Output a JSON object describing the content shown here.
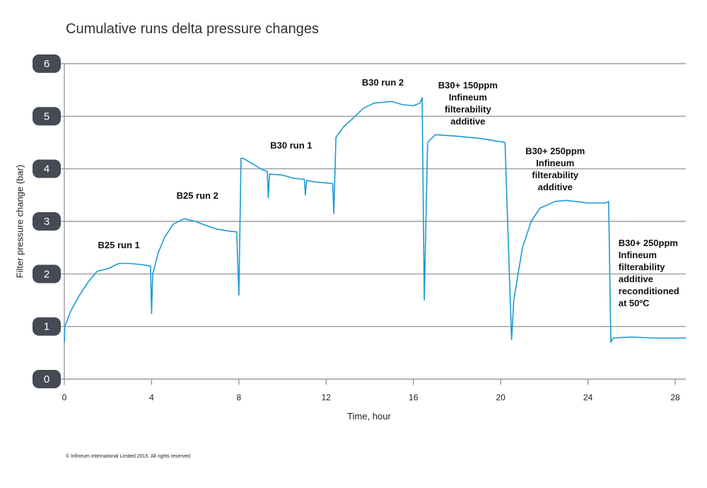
{
  "chart_data": {
    "type": "line",
    "title": "Cumulative runs delta pressure changes",
    "xlabel": "Time, hour",
    "ylabel": "Filter pressure change (bar)",
    "xlim": [
      0,
      28.5
    ],
    "ylim": [
      0,
      6
    ],
    "x_ticks": [
      "0",
      "4",
      "8",
      "12",
      "16",
      "20",
      "24",
      "28"
    ],
    "y_ticks": [
      "0",
      "1",
      "2",
      "3",
      "4",
      "5",
      "6"
    ],
    "grid": "horizontal",
    "line_color": "#1a9ad6",
    "series": [
      {
        "x": [
          0,
          0.02,
          0.3,
          0.7,
          1.1,
          1.5,
          2,
          2.5,
          3,
          3.5,
          3.95,
          4.0,
          4.05,
          4.3,
          4.6,
          5,
          5.5,
          6,
          6.5,
          7,
          7.5,
          7.9,
          8.0,
          8.1,
          8.2,
          8.6,
          9,
          9.3,
          9.35,
          9.4,
          10,
          10.5,
          11,
          11.05,
          11.1,
          11.5,
          12,
          12.3,
          12.35,
          12.45,
          12.8,
          13.2,
          13.7,
          14.2,
          15,
          15.5,
          16,
          16.3,
          16.4,
          16.5,
          16.65,
          17,
          18,
          19,
          19.5,
          20.2,
          20.5,
          20.6,
          20.8,
          21.0,
          21.4,
          21.8,
          22.5,
          23,
          24,
          24.8,
          24.95,
          25.05,
          25.15,
          26,
          27,
          28.5
        ],
        "y": [
          0.7,
          1.0,
          1.3,
          1.6,
          1.85,
          2.05,
          2.1,
          2.2,
          2.2,
          2.18,
          2.15,
          1.25,
          2.0,
          2.4,
          2.7,
          2.95,
          3.05,
          3.0,
          2.92,
          2.85,
          2.82,
          2.8,
          1.6,
          4.2,
          4.2,
          4.1,
          4.0,
          3.95,
          3.45,
          3.9,
          3.88,
          3.82,
          3.8,
          3.5,
          3.78,
          3.75,
          3.73,
          3.72,
          3.15,
          4.6,
          4.8,
          4.95,
          5.15,
          5.25,
          5.28,
          5.22,
          5.2,
          5.25,
          5.35,
          1.5,
          4.5,
          4.65,
          4.62,
          4.58,
          4.55,
          4.5,
          0.75,
          1.5,
          2.0,
          2.5,
          3.0,
          3.25,
          3.38,
          3.4,
          3.35,
          3.35,
          3.38,
          0.7,
          0.78,
          0.8,
          0.78,
          0.78
        ]
      }
    ],
    "annotations": [
      {
        "lines": [
          "B25 run 1"
        ],
        "x": 2.5,
        "y": 2.55
      },
      {
        "lines": [
          "B25 run 2"
        ],
        "x": 6.1,
        "y": 3.5
      },
      {
        "lines": [
          "B30 run 1"
        ],
        "x": 10.4,
        "y": 4.45
      },
      {
        "lines": [
          "B30 run 2"
        ],
        "x": 14.6,
        "y": 5.65
      },
      {
        "lines": [
          "B30+ 150ppm",
          "Infineum",
          "filterability",
          "additive"
        ],
        "x": 18.5,
        "y": 5.6
      },
      {
        "lines": [
          "B30+ 250ppm",
          "Infineum",
          "filterability",
          "additive"
        ],
        "x": 22.5,
        "y": 4.35
      },
      {
        "lines": [
          "B30+ 250ppm",
          "Infineum",
          "filterability",
          "additive",
          "reconditioned",
          "at 50ºC"
        ],
        "x": 25.4,
        "y": 2.6
      }
    ]
  },
  "footer": {
    "copyright": "© Infineum International Limited 2015. All rights reserved"
  }
}
